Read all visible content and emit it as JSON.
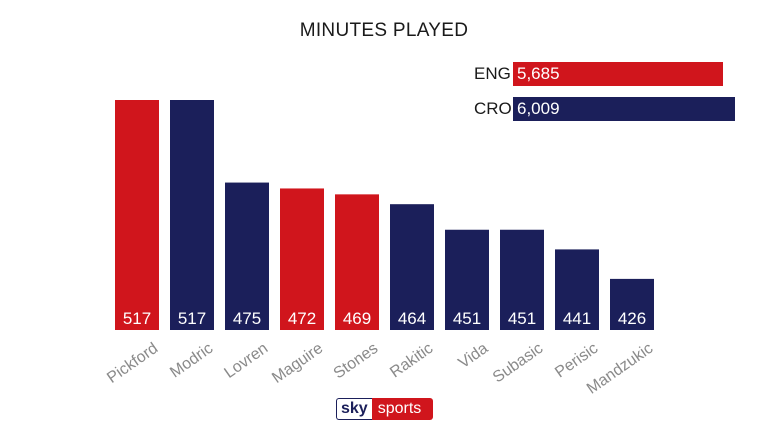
{
  "title": "MINUTES PLAYED",
  "colors": {
    "eng": "#d0151c",
    "cro": "#1b1f5a"
  },
  "totals": [
    {
      "code": "ENG",
      "label": "5,685",
      "value": 5685,
      "team": "eng"
    },
    {
      "code": "CRO",
      "label": "6,009",
      "value": 6009,
      "team": "cro"
    }
  ],
  "chart_data": {
    "type": "bar",
    "title": "MINUTES PLAYED",
    "categories": [
      "Pickford",
      "Modric",
      "Lovren",
      "Maguire",
      "Stones",
      "Rakitic",
      "Vida",
      "Subasic",
      "Perisic",
      "Mandzukic"
    ],
    "values": [
      517,
      517,
      475,
      472,
      469,
      464,
      451,
      451,
      441,
      426
    ],
    "teams": [
      "eng",
      "cro",
      "cro",
      "eng",
      "eng",
      "cro",
      "cro",
      "cro",
      "cro",
      "cro"
    ],
    "grid": false
  },
  "logo": {
    "brand": "sky",
    "product": "sports"
  }
}
